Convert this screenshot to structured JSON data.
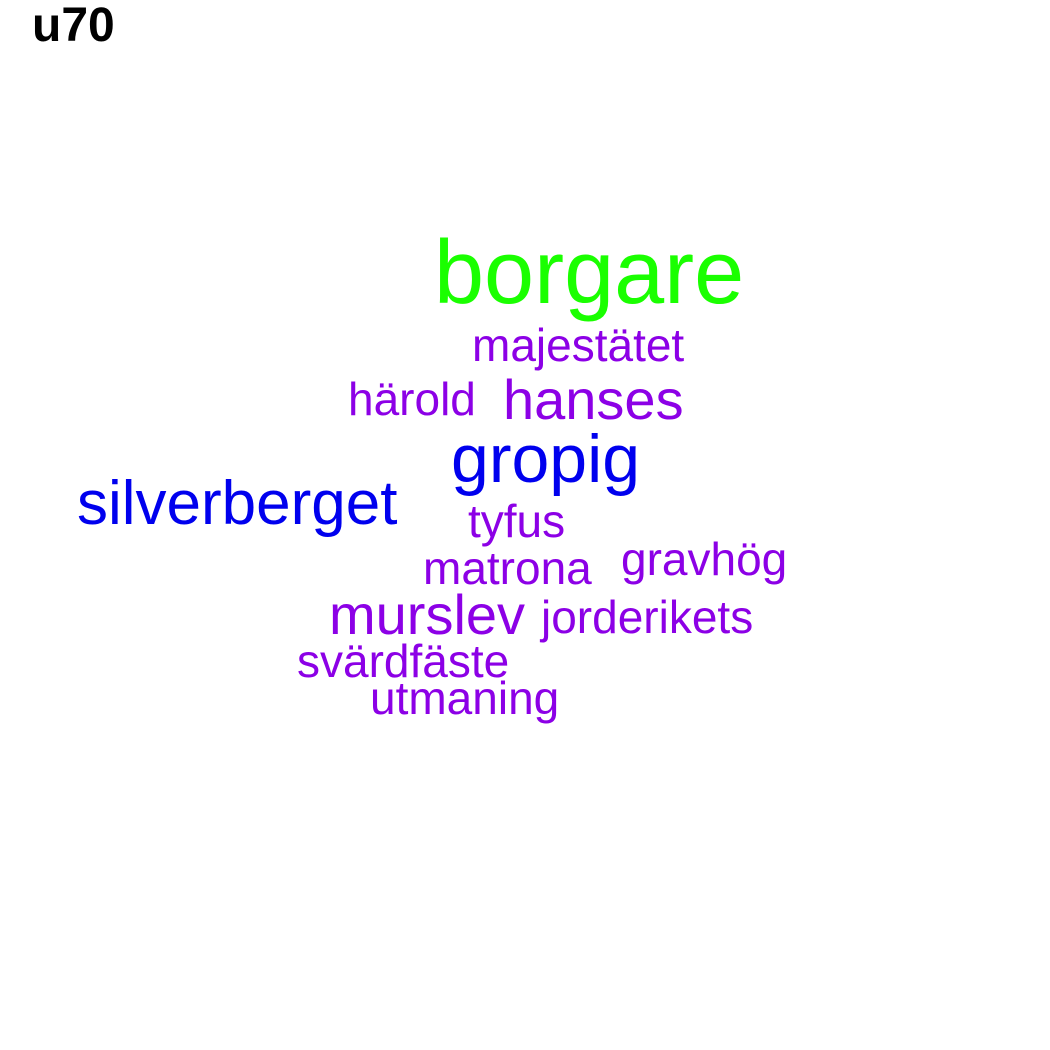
{
  "title": "u70",
  "colors": {
    "green": "#1aff00",
    "blue": "#0000ee",
    "purple": "#8c00e6",
    "title": "#000000",
    "background": "#ffffff"
  },
  "words": [
    {
      "key": "borgare",
      "text": "borgare",
      "color": "green"
    },
    {
      "key": "majestatet",
      "text": "majestätet",
      "color": "purple"
    },
    {
      "key": "harold",
      "text": "härold",
      "color": "purple"
    },
    {
      "key": "hanses",
      "text": "hanses",
      "color": "purple"
    },
    {
      "key": "gropig",
      "text": "gropig",
      "color": "blue"
    },
    {
      "key": "silverberget",
      "text": "silverberget",
      "color": "blue"
    },
    {
      "key": "tyfus",
      "text": "tyfus",
      "color": "purple"
    },
    {
      "key": "matrona",
      "text": "matrona",
      "color": "purple"
    },
    {
      "key": "gravhog",
      "text": "gravhög",
      "color": "purple"
    },
    {
      "key": "murslev",
      "text": "murslev",
      "color": "purple"
    },
    {
      "key": "jorderikets",
      "text": "jorderikets",
      "color": "purple"
    },
    {
      "key": "svardfaste",
      "text": "svärdfäste",
      "color": "purple"
    },
    {
      "key": "utmaning",
      "text": "utmaning",
      "color": "purple"
    }
  ]
}
